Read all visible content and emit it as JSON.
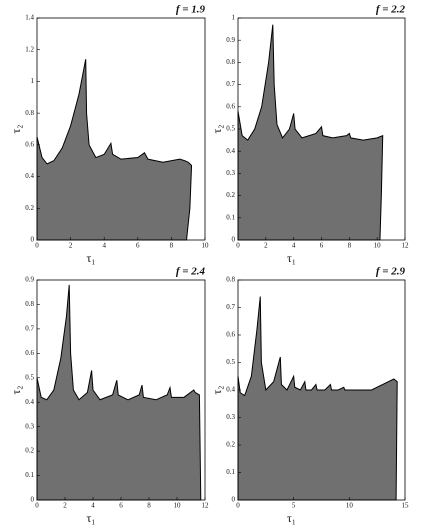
{
  "chart_data": [
    {
      "type": "area",
      "title": "f = 1.9",
      "xlabel": "τ₁",
      "ylabel": "τ₂",
      "color": "#707070",
      "x": [
        0,
        0.3,
        0.6,
        1.0,
        1.5,
        2.0,
        2.5,
        2.9,
        2.95,
        3.1,
        3.5,
        4.0,
        4.4,
        4.5,
        5.0,
        6.0,
        6.4,
        6.6,
        7.5,
        8.5,
        8.8,
        9.0,
        9.2,
        9.1,
        8.9
      ],
      "values": [
        0.65,
        0.52,
        0.48,
        0.5,
        0.58,
        0.72,
        0.92,
        1.14,
        0.8,
        0.6,
        0.52,
        0.54,
        0.61,
        0.54,
        0.51,
        0.52,
        0.55,
        0.51,
        0.49,
        0.51,
        0.5,
        0.49,
        0.47,
        0.2,
        0
      ],
      "xlim": [
        0,
        10
      ],
      "xticks": [
        0,
        2,
        4,
        6,
        8,
        10
      ],
      "ylim": [
        0,
        1.4
      ],
      "yticks": [
        0,
        0.2,
        0.4,
        0.6,
        0.8,
        1,
        1.2,
        1.4
      ]
    },
    {
      "type": "area",
      "title": "f = 2.2",
      "xlabel": "τ₁",
      "ylabel": "τ₂",
      "color": "#707070",
      "x": [
        0,
        0.3,
        0.7,
        1.2,
        1.7,
        2.2,
        2.5,
        2.6,
        2.8,
        3.2,
        3.7,
        4.0,
        4.1,
        4.6,
        5.6,
        6.0,
        6.1,
        6.8,
        7.8,
        8.0,
        8.1,
        9.0,
        10.0,
        10.4,
        10.3,
        10.2
      ],
      "values": [
        0.58,
        0.47,
        0.45,
        0.5,
        0.6,
        0.8,
        0.97,
        0.7,
        0.52,
        0.46,
        0.5,
        0.57,
        0.5,
        0.46,
        0.48,
        0.51,
        0.47,
        0.46,
        0.47,
        0.48,
        0.46,
        0.45,
        0.46,
        0.47,
        0.2,
        0
      ],
      "xlim": [
        0,
        12
      ],
      "xticks": [
        0,
        2,
        4,
        6,
        8,
        10,
        12
      ],
      "ylim": [
        0,
        1
      ],
      "yticks": [
        0,
        0.1,
        0.2,
        0.3,
        0.4,
        0.5,
        0.6,
        0.7,
        0.8,
        0.9,
        1
      ]
    },
    {
      "type": "area",
      "title": "f = 2.4",
      "xlabel": "τ₁",
      "ylabel": "τ₂",
      "color": "#707070",
      "x": [
        0,
        0.3,
        0.7,
        1.2,
        1.7,
        2.1,
        2.3,
        2.4,
        2.6,
        3.0,
        3.6,
        3.9,
        4.0,
        4.5,
        5.4,
        5.7,
        5.8,
        6.5,
        7.3,
        7.5,
        7.6,
        8.5,
        9.3,
        9.5,
        9.6,
        10.5,
        11.2,
        11.3,
        11.6,
        11.7
      ],
      "values": [
        0.5,
        0.42,
        0.41,
        0.45,
        0.58,
        0.75,
        0.88,
        0.6,
        0.45,
        0.41,
        0.44,
        0.53,
        0.45,
        0.41,
        0.43,
        0.49,
        0.43,
        0.41,
        0.43,
        0.47,
        0.42,
        0.41,
        0.43,
        0.46,
        0.42,
        0.42,
        0.45,
        0.44,
        0.43,
        0
      ],
      "xlim": [
        0,
        12
      ],
      "xticks": [
        0,
        2,
        4,
        6,
        8,
        10,
        12
      ],
      "ylim": [
        0,
        0.9
      ],
      "yticks": [
        0,
        0.1,
        0.2,
        0.3,
        0.4,
        0.5,
        0.6,
        0.7,
        0.8,
        0.9
      ]
    },
    {
      "type": "area",
      "title": "f = 2.9",
      "xlabel": "τ₁",
      "ylabel": "τ₂",
      "color": "#707070",
      "x": [
        0,
        0.2,
        0.6,
        1.2,
        1.7,
        2.0,
        2.1,
        2.5,
        3.2,
        3.8,
        3.9,
        4.4,
        5.0,
        5.1,
        5.6,
        6.0,
        6.1,
        6.6,
        7.0,
        7.1,
        7.8,
        8.3,
        8.4,
        9.0,
        9.5,
        9.6,
        12.0,
        14.0,
        14.3,
        14.2
      ],
      "values": [
        0.45,
        0.39,
        0.38,
        0.45,
        0.62,
        0.74,
        0.5,
        0.4,
        0.43,
        0.52,
        0.42,
        0.4,
        0.45,
        0.41,
        0.4,
        0.43,
        0.4,
        0.4,
        0.42,
        0.4,
        0.4,
        0.42,
        0.4,
        0.4,
        0.41,
        0.4,
        0.4,
        0.44,
        0.43,
        0
      ],
      "xlim": [
        0,
        15
      ],
      "xticks": [
        0,
        5,
        10,
        15
      ],
      "ylim": [
        0,
        0.8
      ],
      "yticks": [
        0,
        0.1,
        0.2,
        0.3,
        0.4,
        0.5,
        0.6,
        0.7,
        0.8
      ]
    }
  ]
}
